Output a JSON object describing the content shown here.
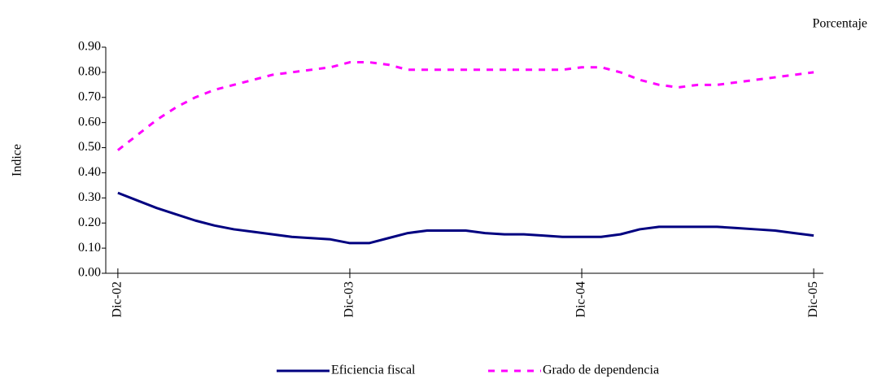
{
  "chart_data": {
    "type": "line",
    "unit_label": "Porcentaje",
    "y_label": "Indice",
    "categories": [
      "Dic-02",
      null,
      null,
      null,
      null,
      null,
      null,
      null,
      null,
      null,
      null,
      null,
      "Dic-03",
      null,
      null,
      null,
      null,
      null,
      null,
      null,
      null,
      null,
      null,
      null,
      "Dic-04",
      null,
      null,
      null,
      null,
      null,
      null,
      null,
      null,
      null,
      null,
      null,
      "Dic-05"
    ],
    "series": [
      {
        "name": "Eficiencia fiscal",
        "color": "#000080",
        "dash": "solid",
        "values": [
          0.32,
          0.29,
          0.26,
          0.235,
          0.21,
          0.19,
          0.175,
          0.165,
          0.155,
          0.145,
          0.14,
          0.135,
          0.12,
          0.12,
          0.14,
          0.16,
          0.17,
          0.17,
          0.17,
          0.16,
          0.155,
          0.155,
          0.15,
          0.145,
          0.145,
          0.145,
          0.155,
          0.175,
          0.185,
          0.185,
          0.185,
          0.185,
          0.18,
          0.175,
          0.17,
          0.16,
          0.15
        ]
      },
      {
        "name": "Grado de dependencia",
        "color": "#ff00ff",
        "dash": "dashed",
        "values": [
          0.49,
          0.55,
          0.61,
          0.66,
          0.7,
          0.73,
          0.75,
          0.77,
          0.79,
          0.8,
          0.81,
          0.82,
          0.84,
          0.84,
          0.83,
          0.81,
          0.81,
          0.81,
          0.81,
          0.81,
          0.81,
          0.81,
          0.81,
          0.81,
          0.82,
          0.82,
          0.8,
          0.77,
          0.75,
          0.74,
          0.75,
          0.75,
          0.76,
          0.77,
          0.78,
          0.79,
          0.8
        ]
      }
    ],
    "ylim": [
      0,
      0.9
    ],
    "yticks": [
      {
        "value": 0,
        "label": "0.00"
      },
      {
        "value": 0.1,
        "label": "0.10"
      },
      {
        "value": 0.2,
        "label": "0.20"
      },
      {
        "value": 0.3,
        "label": "0.30"
      },
      {
        "value": 0.4,
        "label": "0.40"
      },
      {
        "value": 0.5,
        "label": "0.50"
      },
      {
        "value": 0.6,
        "label": "0.60"
      },
      {
        "value": 0.7,
        "label": "0.70"
      },
      {
        "value": 0.8,
        "label": "0.80"
      },
      {
        "value": 0.9,
        "label": "0.90"
      }
    ],
    "grid": false,
    "legend": "bottom"
  }
}
